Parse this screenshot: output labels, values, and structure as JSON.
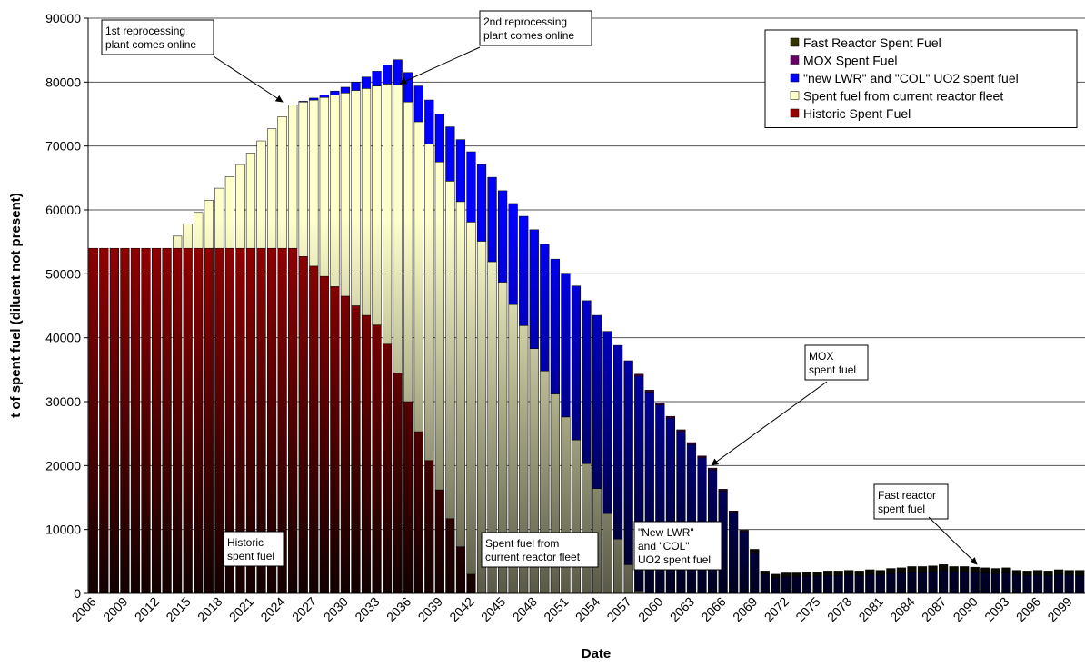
{
  "chart_data": {
    "type": "stacked_bar",
    "x_label": "Date",
    "y_label": "t of spent fuel (diluent not present)",
    "categories": [
      "2006",
      null,
      null,
      "2009",
      null,
      null,
      "2012",
      null,
      null,
      "2015",
      null,
      null,
      "2018",
      null,
      null,
      "2021",
      null,
      null,
      "2024",
      null,
      null,
      "2027",
      null,
      null,
      "2030",
      null,
      null,
      "2033",
      null,
      null,
      "2036",
      null,
      null,
      "2039",
      null,
      null,
      "2042",
      null,
      null,
      "2045",
      null,
      null,
      "2048",
      null,
      null,
      "2051",
      null,
      null,
      "2054",
      null,
      null,
      "2057",
      null,
      null,
      "2060",
      null,
      null,
      "2063",
      null,
      null,
      "2066",
      null,
      null,
      "2069",
      null,
      null,
      "2072",
      null,
      null,
      "2075",
      null,
      null,
      "2078",
      null,
      null,
      "2081",
      null,
      null,
      "2084",
      null,
      null,
      "2087",
      null,
      null,
      "2090",
      null,
      null,
      "2093",
      null,
      null,
      "2096",
      null,
      null,
      "2099",
      null
    ],
    "series": [
      {
        "name": "Historic Spent Fuel",
        "color": "#990000",
        "values": [
          54000,
          54000,
          54000,
          54000,
          54000,
          54000,
          54000,
          54000,
          54000,
          54000,
          54000,
          54000,
          54000,
          54000,
          54000,
          54000,
          54000,
          54000,
          54000,
          54000,
          52700,
          51200,
          49600,
          48000,
          46500,
          45000,
          43500,
          42000,
          39000,
          34500,
          30000,
          25300,
          20800,
          16200,
          11700,
          7300,
          3000,
          0,
          0,
          0,
          0,
          0,
          0,
          0,
          0,
          0,
          0,
          0,
          0,
          0,
          0,
          0,
          0,
          0,
          0,
          0,
          0,
          0,
          0,
          0,
          0,
          0,
          0,
          0,
          0,
          0,
          0,
          0,
          0,
          0,
          0,
          0,
          0,
          0,
          0,
          0,
          0,
          0,
          0,
          0,
          0,
          0,
          0,
          0,
          0,
          0,
          0,
          0,
          0,
          0,
          0,
          0,
          0,
          0,
          0
        ]
      },
      {
        "name": "Spent fuel from current reactor fleet",
        "color": "#ffffcc",
        "values": [
          0,
          0,
          0,
          0,
          0,
          0,
          0,
          0,
          1900,
          3800,
          5600,
          7500,
          9400,
          11200,
          13100,
          14900,
          16800,
          18700,
          20600,
          22400,
          24200,
          26000,
          28000,
          30000,
          31800,
          33700,
          35500,
          37400,
          40700,
          45100,
          46900,
          48500,
          49500,
          51300,
          52800,
          54000,
          55100,
          55100,
          51900,
          48700,
          45200,
          41900,
          38300,
          34800,
          31200,
          27600,
          24000,
          20300,
          16400,
          12500,
          8500,
          4500,
          400,
          0,
          0,
          0,
          0,
          0,
          0,
          0,
          0,
          0,
          0,
          0,
          0,
          0,
          0,
          0,
          0,
          0,
          0,
          0,
          0,
          0,
          0,
          0,
          0,
          0,
          0,
          0,
          0,
          0,
          0,
          0,
          0,
          0,
          0,
          0,
          0,
          0,
          0,
          0,
          0,
          0,
          0
        ]
      },
      {
        "name": "\"new LWR\" and \"COL\" UO2 spent fuel",
        "color": "#0000ff",
        "values": [
          0,
          0,
          0,
          0,
          0,
          0,
          0,
          0,
          0,
          0,
          0,
          0,
          0,
          0,
          0,
          0,
          0,
          0,
          0,
          0,
          100,
          300,
          400,
          600,
          900,
          1300,
          1800,
          2300,
          3000,
          3900,
          4600,
          5600,
          6900,
          7500,
          8500,
          9700,
          11000,
          12000,
          13200,
          14300,
          15800,
          17100,
          18600,
          19800,
          21100,
          22500,
          24100,
          25500,
          27100,
          28500,
          30300,
          31900,
          33600,
          31500,
          29500,
          27400,
          25300,
          23300,
          21200,
          19300,
          16000,
          12600,
          9600,
          6300,
          3000,
          2400,
          2600,
          2600,
          2700,
          2700,
          2800,
          2800,
          2900,
          2800,
          3000,
          2900,
          3100,
          3200,
          3300,
          3300,
          3400,
          3600,
          3400,
          3400,
          3300,
          3200,
          3100,
          3200,
          2900,
          2800,
          2900,
          2800,
          3000,
          2900,
          2800
        ]
      },
      {
        "name": "MOX Spent Fuel",
        "color": "#660066",
        "values": [
          0,
          0,
          0,
          0,
          0,
          0,
          0,
          0,
          0,
          0,
          0,
          0,
          0,
          0,
          0,
          0,
          0,
          0,
          0,
          0,
          0,
          0,
          0,
          0,
          0,
          0,
          0,
          0,
          0,
          0,
          0,
          0,
          0,
          0,
          0,
          0,
          0,
          0,
          0,
          0,
          0,
          0,
          0,
          0,
          0,
          0,
          0,
          0,
          0,
          0,
          0,
          0,
          300,
          300,
          300,
          300,
          300,
          300,
          300,
          300,
          300,
          300,
          300,
          300,
          0,
          0,
          0,
          0,
          0,
          0,
          0,
          0,
          0,
          0,
          0,
          0,
          0,
          0,
          0,
          0,
          0,
          0,
          0,
          0,
          0,
          0,
          0,
          0,
          0,
          0,
          0,
          0,
          0,
          0,
          0
        ]
      },
      {
        "name": "Fast Reactor Spent Fuel",
        "color": "#333300",
        "values": [
          0,
          0,
          0,
          0,
          0,
          0,
          0,
          0,
          0,
          0,
          0,
          0,
          0,
          0,
          0,
          0,
          0,
          0,
          0,
          0,
          0,
          0,
          0,
          0,
          0,
          0,
          0,
          0,
          0,
          0,
          0,
          0,
          0,
          0,
          0,
          0,
          0,
          0,
          0,
          0,
          0,
          0,
          0,
          0,
          0,
          0,
          0,
          0,
          0,
          0,
          0,
          0,
          0,
          0,
          0,
          0,
          0,
          0,
          0,
          0,
          0,
          0,
          0,
          300,
          500,
          600,
          600,
          600,
          600,
          600,
          700,
          700,
          700,
          700,
          700,
          700,
          800,
          800,
          900,
          900,
          900,
          900,
          800,
          800,
          800,
          800,
          800,
          800,
          700,
          700,
          700,
          700,
          700,
          700,
          800
        ]
      }
    ],
    "ylim": [
      0,
      90000
    ],
    "yticks": [
      0,
      10000,
      20000,
      30000,
      40000,
      50000,
      60000,
      70000,
      80000,
      90000
    ],
    "grid": true,
    "legend": "upper right",
    "annotations": [
      {
        "text": [
          "1st reprocessing",
          "plant comes online"
        ]
      },
      {
        "text": [
          "2nd reprocessing",
          "plant comes online"
        ]
      },
      {
        "text": [
          "MOX",
          "spent fuel"
        ]
      },
      {
        "text": [
          "Fast reactor",
          "spent fuel"
        ]
      },
      {
        "text": [
          "Historic",
          "spent fuel"
        ]
      },
      {
        "text": [
          "Spent fuel from",
          "current reactor fleet"
        ]
      },
      {
        "text": [
          "\"New LWR\"",
          "and \"COL\"",
          "UO2 spent fuel"
        ]
      }
    ]
  }
}
